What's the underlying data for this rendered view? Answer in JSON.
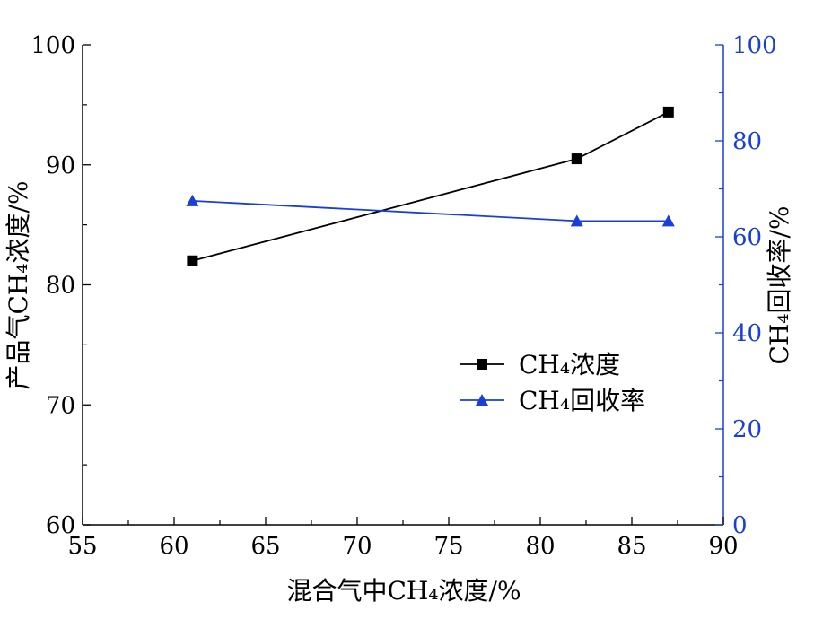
{
  "chart_data": {
    "type": "line",
    "x": [
      61,
      82,
      87
    ],
    "xlabel": "混合气中CH₄浓度/%",
    "xlim": [
      55,
      90
    ],
    "xticks": [
      55,
      60,
      65,
      70,
      75,
      80,
      85,
      90
    ],
    "y_left": {
      "label": "产品气CH₄浓度/%",
      "lim": [
        60,
        100
      ],
      "ticks": [
        60,
        70,
        80,
        90,
        100
      ]
    },
    "y_right": {
      "label": "CH₄回收率/%",
      "lim": [
        0,
        100
      ],
      "ticks": [
        0,
        20,
        40,
        60,
        80,
        100
      ],
      "color": "#1a3fd6"
    },
    "series": [
      {
        "name": "CH₄浓度",
        "axis": "left",
        "marker": "square",
        "color": "#000000",
        "values": [
          82.0,
          90.5,
          94.4
        ]
      },
      {
        "name": "CH₄回收率",
        "axis": "right",
        "marker": "triangle",
        "color": "#1a3fd6",
        "values": [
          67.5,
          63.3,
          63.3
        ]
      }
    ],
    "legend_position": "lower-center",
    "grid": false
  }
}
